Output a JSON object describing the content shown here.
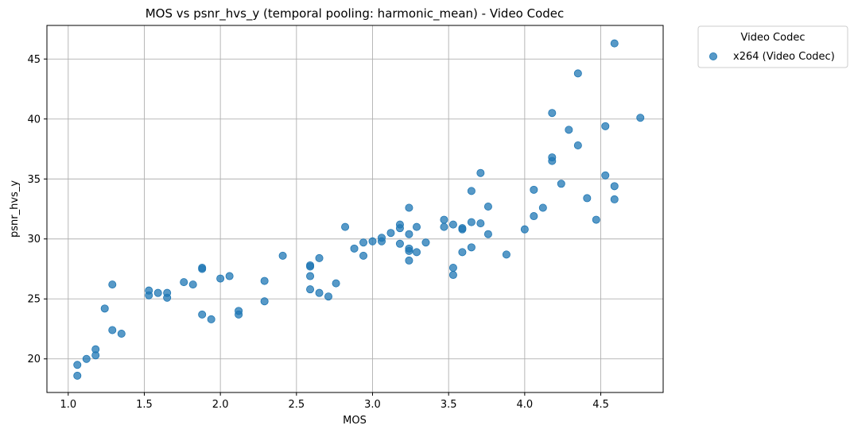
{
  "chart_data": {
    "type": "scatter",
    "title": "MOS vs psnr_hvs_y (temporal pooling: harmonic_mean) - Video Codec",
    "xlabel": "MOS",
    "ylabel": "psnr_hvs_y",
    "xlim": [
      0.86,
      4.91
    ],
    "ylim": [
      17.2,
      47.8
    ],
    "xticks": [
      "1.0",
      "1.5",
      "2.0",
      "2.5",
      "3.0",
      "3.5",
      "4.0",
      "4.5"
    ],
    "yticks": [
      "20",
      "25",
      "30",
      "35",
      "40",
      "45"
    ],
    "grid": true,
    "legend": {
      "title": "Video Codec",
      "placement": "outside-top-right"
    },
    "color": "#1f77b4",
    "series": [
      {
        "name": "x264 (Video Codec)",
        "points": [
          [
            1.06,
            18.6
          ],
          [
            1.06,
            19.5
          ],
          [
            1.12,
            20.0
          ],
          [
            1.18,
            20.3
          ],
          [
            1.18,
            20.8
          ],
          [
            1.24,
            24.2
          ],
          [
            1.29,
            22.4
          ],
          [
            1.29,
            26.2
          ],
          [
            1.35,
            22.1
          ],
          [
            1.53,
            25.3
          ],
          [
            1.53,
            25.7
          ],
          [
            1.59,
            25.5
          ],
          [
            1.65,
            25.1
          ],
          [
            1.65,
            25.5
          ],
          [
            1.76,
            26.4
          ],
          [
            1.82,
            26.2
          ],
          [
            1.88,
            27.5
          ],
          [
            1.88,
            27.6
          ],
          [
            1.88,
            23.7
          ],
          [
            1.94,
            23.3
          ],
          [
            2.0,
            26.7
          ],
          [
            2.06,
            26.9
          ],
          [
            2.12,
            23.7
          ],
          [
            2.12,
            24.0
          ],
          [
            2.29,
            24.8
          ],
          [
            2.29,
            26.5
          ],
          [
            2.41,
            28.6
          ],
          [
            2.59,
            27.7
          ],
          [
            2.59,
            27.8
          ],
          [
            2.59,
            26.9
          ],
          [
            2.59,
            25.8
          ],
          [
            2.65,
            25.5
          ],
          [
            2.65,
            28.4
          ],
          [
            2.71,
            25.2
          ],
          [
            2.76,
            26.3
          ],
          [
            2.82,
            31.0
          ],
          [
            2.88,
            29.2
          ],
          [
            2.94,
            28.6
          ],
          [
            2.94,
            29.7
          ],
          [
            3.0,
            29.8
          ],
          [
            3.06,
            30.1
          ],
          [
            3.06,
            29.8
          ],
          [
            3.12,
            30.5
          ],
          [
            3.18,
            31.2
          ],
          [
            3.18,
            30.9
          ],
          [
            3.18,
            29.6
          ],
          [
            3.24,
            32.6
          ],
          [
            3.24,
            30.4
          ],
          [
            3.24,
            29.2
          ],
          [
            3.24,
            29.0
          ],
          [
            3.24,
            28.2
          ],
          [
            3.29,
            31.0
          ],
          [
            3.29,
            28.9
          ],
          [
            3.35,
            29.7
          ],
          [
            3.47,
            31.6
          ],
          [
            3.47,
            31.0
          ],
          [
            3.53,
            31.2
          ],
          [
            3.53,
            27.6
          ],
          [
            3.53,
            27.0
          ],
          [
            3.59,
            30.9
          ],
          [
            3.59,
            30.8
          ],
          [
            3.59,
            28.9
          ],
          [
            3.65,
            34.0
          ],
          [
            3.65,
            31.4
          ],
          [
            3.65,
            29.3
          ],
          [
            3.71,
            35.5
          ],
          [
            3.71,
            31.3
          ],
          [
            3.76,
            32.7
          ],
          [
            3.76,
            30.4
          ],
          [
            3.88,
            28.7
          ],
          [
            4.0,
            30.8
          ],
          [
            4.06,
            34.1
          ],
          [
            4.06,
            31.9
          ],
          [
            4.12,
            32.6
          ],
          [
            4.18,
            40.5
          ],
          [
            4.18,
            36.8
          ],
          [
            4.18,
            36.5
          ],
          [
            4.24,
            34.6
          ],
          [
            4.29,
            39.1
          ],
          [
            4.35,
            43.8
          ],
          [
            4.35,
            37.8
          ],
          [
            4.41,
            33.4
          ],
          [
            4.47,
            31.6
          ],
          [
            4.53,
            39.4
          ],
          [
            4.53,
            35.3
          ],
          [
            4.59,
            46.3
          ],
          [
            4.59,
            34.4
          ],
          [
            4.59,
            33.3
          ],
          [
            4.76,
            40.1
          ]
        ]
      }
    ]
  }
}
